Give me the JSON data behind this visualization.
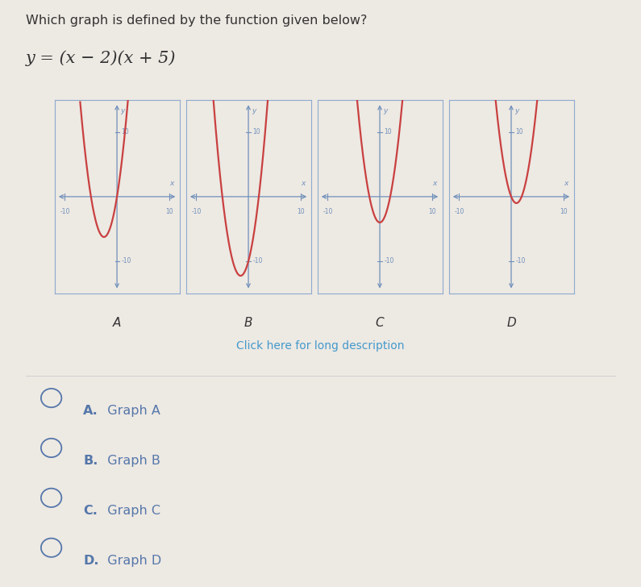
{
  "title": "Which graph is defined by the function given below?",
  "function_text": "y = (x − 2)(x + 5)",
  "bg_color": "#ede9e3",
  "graph_color": "#c94040",
  "axis_color": "#7090bb",
  "box_color": "#8faad0",
  "text_color": "#333333",
  "choice_color": "#5577aa",
  "axis_range": [
    -12,
    12
  ],
  "y_range": [
    -15,
    15
  ],
  "graphs": [
    {
      "label": "A",
      "roots": [
        -5,
        0
      ]
    },
    {
      "label": "B",
      "roots": [
        -5,
        2
      ]
    },
    {
      "label": "C",
      "roots": [
        -2,
        2
      ]
    },
    {
      "label": "D",
      "roots": [
        0,
        2
      ]
    }
  ],
  "choices": [
    {
      "letter": "A.",
      "text": "  Graph A"
    },
    {
      "letter": "B.",
      "text": "  Graph B"
    },
    {
      "letter": "C.",
      "text": "  Graph C"
    },
    {
      "letter": "D.",
      "text": "  Graph D"
    }
  ],
  "click_text": "Click here for long description",
  "click_color": "#4499cc"
}
